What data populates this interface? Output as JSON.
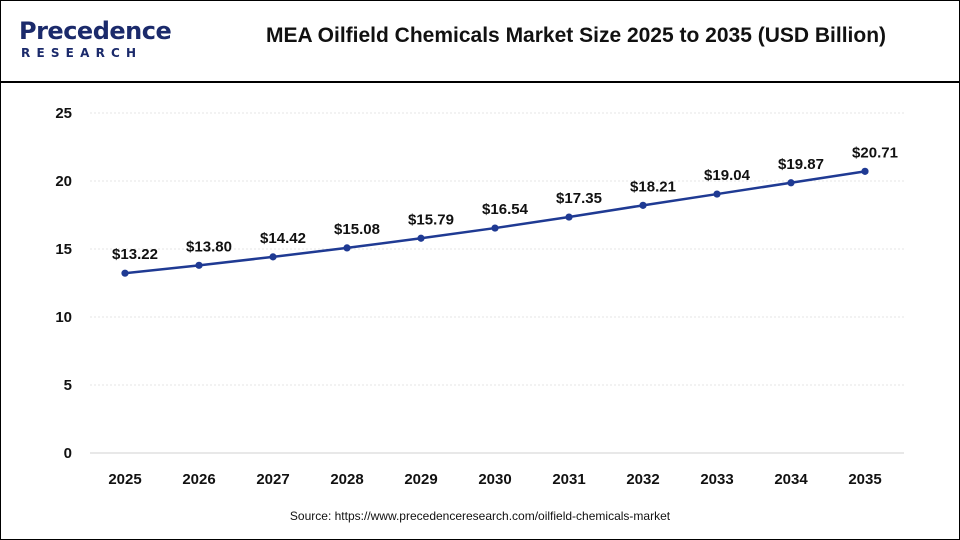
{
  "brand": {
    "name_main": "Precedence",
    "name_sub": "RESEARCH",
    "color": "#1b2a6b"
  },
  "header": {
    "title": "MEA Oilfield Chemicals Market Size 2025 to 2035 (USD Billion)"
  },
  "footer": {
    "source": "Source: https://www.precedenceresearch.com/oilfield-chemicals-market"
  },
  "chart_data": {
    "type": "line",
    "title": "MEA Oilfield Chemicals Market Size 2025 to 2035 (USD Billion)",
    "xlabel": "",
    "ylabel": "",
    "categories": [
      "2025",
      "2026",
      "2027",
      "2028",
      "2029",
      "2030",
      "2031",
      "2032",
      "2033",
      "2034",
      "2035"
    ],
    "series": [
      {
        "values": [
          13.22,
          13.8,
          14.42,
          15.08,
          15.79,
          16.54,
          17.35,
          18.21,
          19.04,
          19.87,
          20.71
        ],
        "labels": [
          "$13.22",
          "$13.80",
          "$14.42",
          "$15.08",
          "$15.79",
          "$16.54",
          "$17.35",
          "$18.21",
          "$19.04",
          "$19.87",
          "$20.71"
        ],
        "color": "#1f3a93"
      }
    ],
    "ylim": [
      0,
      25
    ],
    "yticks": [
      0,
      5,
      10,
      15,
      20,
      25
    ],
    "grid": true,
    "legend": "none"
  }
}
